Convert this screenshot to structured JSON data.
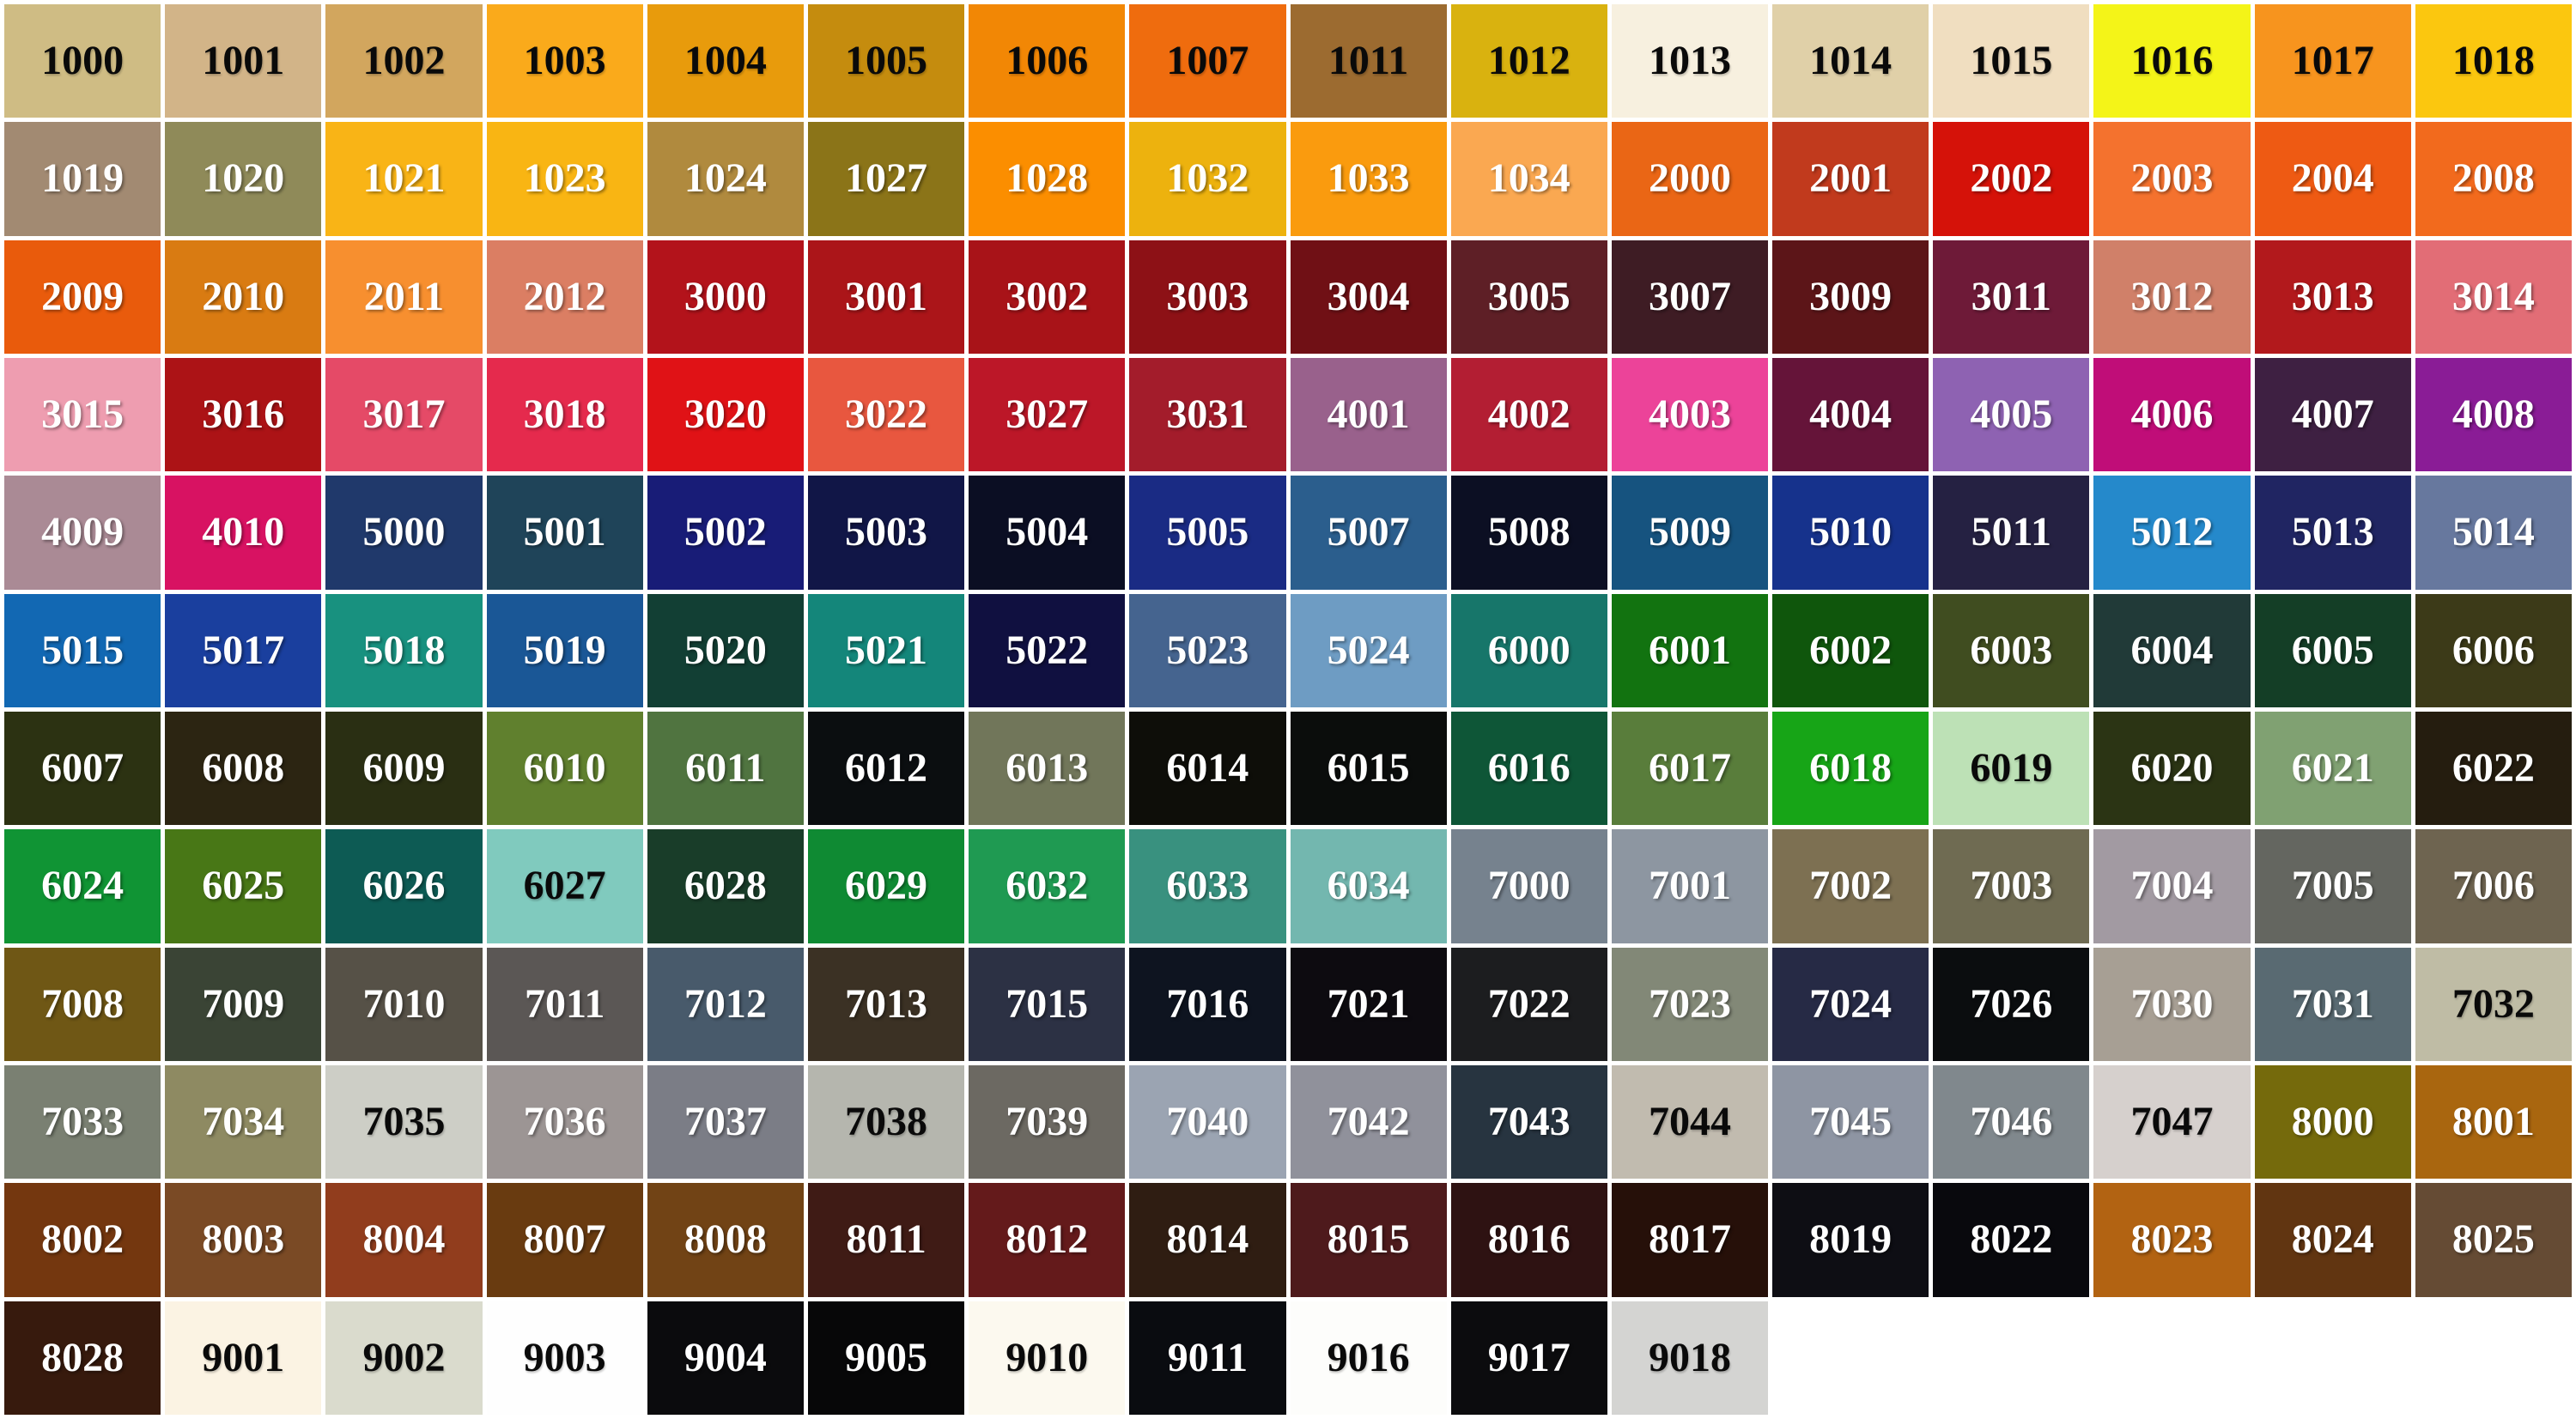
{
  "chart_data": {
    "type": "table",
    "description": "RAL classic colour chart grid of labelled colour swatches",
    "columns": 16,
    "row_count": 12,
    "text_colors": {
      "light": "#FFFFFF",
      "dark": "#0A0A0A"
    },
    "rows": [
      [
        {
          "code": "1000",
          "hex": "#CFBC84",
          "text": "dark"
        },
        {
          "code": "1001",
          "hex": "#D2B488",
          "text": "dark"
        },
        {
          "code": "1002",
          "hex": "#D2A65E",
          "text": "dark"
        },
        {
          "code": "1003",
          "hex": "#FAAA1B",
          "text": "dark"
        },
        {
          "code": "1004",
          "hex": "#E89B0C",
          "text": "dark"
        },
        {
          "code": "1005",
          "hex": "#C58C0E",
          "text": "dark"
        },
        {
          "code": "1006",
          "hex": "#F28705",
          "text": "dark"
        },
        {
          "code": "1007",
          "hex": "#EF6C0E",
          "text": "dark"
        },
        {
          "code": "1011",
          "hex": "#9C6B30",
          "text": "dark"
        },
        {
          "code": "1012",
          "hex": "#D9B20F",
          "text": "dark"
        },
        {
          "code": "1013",
          "hex": "#F7F0DF",
          "text": "dark"
        },
        {
          "code": "1014",
          "hex": "#E0D0A8",
          "text": "dark"
        },
        {
          "code": "1015",
          "hex": "#F0DEC0",
          "text": "dark"
        },
        {
          "code": "1016",
          "hex": "#F4F418",
          "text": "dark"
        },
        {
          "code": "1017",
          "hex": "#F7941E",
          "text": "dark"
        },
        {
          "code": "1018",
          "hex": "#FBC70F",
          "text": "dark"
        }
      ],
      [
        {
          "code": "1019",
          "hex": "#A28A72",
          "text": "light"
        },
        {
          "code": "1020",
          "hex": "#8F8A59",
          "text": "light"
        },
        {
          "code": "1021",
          "hex": "#F9B416",
          "text": "light"
        },
        {
          "code": "1023",
          "hex": "#F9B513",
          "text": "light"
        },
        {
          "code": "1024",
          "hex": "#B08A3E",
          "text": "light"
        },
        {
          "code": "1027",
          "hex": "#8B7418",
          "text": "light"
        },
        {
          "code": "1028",
          "hex": "#FB8E00",
          "text": "light"
        },
        {
          "code": "1032",
          "hex": "#EDB20E",
          "text": "light"
        },
        {
          "code": "1033",
          "hex": "#FA9B0E",
          "text": "light"
        },
        {
          "code": "1034",
          "hex": "#FAA851",
          "text": "light"
        },
        {
          "code": "2000",
          "hex": "#EA6615",
          "text": "light"
        },
        {
          "code": "2001",
          "hex": "#C13A1D",
          "text": "light"
        },
        {
          "code": "2002",
          "hex": "#D51209",
          "text": "light"
        },
        {
          "code": "2003",
          "hex": "#F4722E",
          "text": "light"
        },
        {
          "code": "2004",
          "hex": "#EE5A13",
          "text": "light"
        },
        {
          "code": "2008",
          "hex": "#F26A1D",
          "text": "light"
        }
      ],
      [
        {
          "code": "2009",
          "hex": "#E95B0C",
          "text": "light"
        },
        {
          "code": "2010",
          "hex": "#D97B12",
          "text": "light"
        },
        {
          "code": "2011",
          "hex": "#F78F2F",
          "text": "light"
        },
        {
          "code": "2012",
          "hex": "#DB7E63",
          "text": "light"
        },
        {
          "code": "3000",
          "hex": "#B3131B",
          "text": "light"
        },
        {
          "code": "3001",
          "hex": "#AB1519",
          "text": "light"
        },
        {
          "code": "3002",
          "hex": "#A81318",
          "text": "light"
        },
        {
          "code": "3003",
          "hex": "#8D1116",
          "text": "light"
        },
        {
          "code": "3004",
          "hex": "#701015",
          "text": "light"
        },
        {
          "code": "3005",
          "hex": "#5E1F26",
          "text": "light"
        },
        {
          "code": "3007",
          "hex": "#3E1C24",
          "text": "light"
        },
        {
          "code": "3009",
          "hex": "#5C1518",
          "text": "light"
        },
        {
          "code": "3011",
          "hex": "#6E1A38",
          "text": "light"
        },
        {
          "code": "3012",
          "hex": "#D08069",
          "text": "light"
        },
        {
          "code": "3013",
          "hex": "#B2191C",
          "text": "light"
        },
        {
          "code": "3014",
          "hex": "#E26D76",
          "text": "light"
        }
      ],
      [
        {
          "code": "3015",
          "hex": "#EE9DB0",
          "text": "light"
        },
        {
          "code": "3016",
          "hex": "#AC1316",
          "text": "light"
        },
        {
          "code": "3017",
          "hex": "#E54A67",
          "text": "light"
        },
        {
          "code": "3018",
          "hex": "#E52A4D",
          "text": "light"
        },
        {
          "code": "3020",
          "hex": "#E01216",
          "text": "light"
        },
        {
          "code": "3022",
          "hex": "#E8573F",
          "text": "light"
        },
        {
          "code": "3027",
          "hex": "#BC1728",
          "text": "light"
        },
        {
          "code": "3031",
          "hex": "#A31C2B",
          "text": "light"
        },
        {
          "code": "4001",
          "hex": "#99618C",
          "text": "light"
        },
        {
          "code": "4002",
          "hex": "#B31E33",
          "text": "light"
        },
        {
          "code": "4003",
          "hex": "#EC4399",
          "text": "light"
        },
        {
          "code": "4004",
          "hex": "#651439",
          "text": "light"
        },
        {
          "code": "4005",
          "hex": "#8E62B2",
          "text": "light"
        },
        {
          "code": "4006",
          "hex": "#C00D78",
          "text": "light"
        },
        {
          "code": "4007",
          "hex": "#3E2042",
          "text": "light"
        },
        {
          "code": "4008",
          "hex": "#8A1C96",
          "text": "light"
        }
      ],
      [
        {
          "code": "4009",
          "hex": "#AA8A95",
          "text": "light"
        },
        {
          "code": "4010",
          "hex": "#D81262",
          "text": "light"
        },
        {
          "code": "5000",
          "hex": "#20396B",
          "text": "light"
        },
        {
          "code": "5001",
          "hex": "#1F4459",
          "text": "light"
        },
        {
          "code": "5002",
          "hex": "#181C77",
          "text": "light"
        },
        {
          "code": "5003",
          "hex": "#111647",
          "text": "light"
        },
        {
          "code": "5004",
          "hex": "#0B0E23",
          "text": "light"
        },
        {
          "code": "5005",
          "hex": "#1A2B84",
          "text": "light"
        },
        {
          "code": "5007",
          "hex": "#2B5E8D",
          "text": "light"
        },
        {
          "code": "5008",
          "hex": "#0C0F23",
          "text": "light"
        },
        {
          "code": "5009",
          "hex": "#16537F",
          "text": "light"
        },
        {
          "code": "5010",
          "hex": "#16328C",
          "text": "light"
        },
        {
          "code": "5011",
          "hex": "#252142",
          "text": "light"
        },
        {
          "code": "5012",
          "hex": "#2589CB",
          "text": "light"
        },
        {
          "code": "5013",
          "hex": "#202562",
          "text": "light"
        },
        {
          "code": "5014",
          "hex": "#67789E",
          "text": "light"
        }
      ],
      [
        {
          "code": "5015",
          "hex": "#1268B3",
          "text": "light"
        },
        {
          "code": "5017",
          "hex": "#1A3F9E",
          "text": "light"
        },
        {
          "code": "5018",
          "hex": "#18917F",
          "text": "light"
        },
        {
          "code": "5019",
          "hex": "#1A5796",
          "text": "light"
        },
        {
          "code": "5020",
          "hex": "#123F34",
          "text": "light"
        },
        {
          "code": "5021",
          "hex": "#14867A",
          "text": "light"
        },
        {
          "code": "5022",
          "hex": "#101040",
          "text": "light"
        },
        {
          "code": "5023",
          "hex": "#45648F",
          "text": "light"
        },
        {
          "code": "5024",
          "hex": "#6E9CC3",
          "text": "light"
        },
        {
          "code": "6000",
          "hex": "#17766A",
          "text": "light"
        },
        {
          "code": "6001",
          "hex": "#127310",
          "text": "light"
        },
        {
          "code": "6002",
          "hex": "#0F560C",
          "text": "light"
        },
        {
          "code": "6003",
          "hex": "#404D20",
          "text": "light"
        },
        {
          "code": "6004",
          "hex": "#213A38",
          "text": "light"
        },
        {
          "code": "6005",
          "hex": "#143E26",
          "text": "light"
        },
        {
          "code": "6006",
          "hex": "#3C3A18",
          "text": "light"
        }
      ],
      [
        {
          "code": "6007",
          "hex": "#2C3212",
          "text": "light"
        },
        {
          "code": "6008",
          "hex": "#2C2512",
          "text": "light"
        },
        {
          "code": "6009",
          "hex": "#2A2F13",
          "text": "light"
        },
        {
          "code": "6010",
          "hex": "#60802E",
          "text": "light"
        },
        {
          "code": "6011",
          "hex": "#507440",
          "text": "light"
        },
        {
          "code": "6012",
          "hex": "#0B0E10",
          "text": "light"
        },
        {
          "code": "6013",
          "hex": "#71765A",
          "text": "light"
        },
        {
          "code": "6014",
          "hex": "#0E0E09",
          "text": "light"
        },
        {
          "code": "6015",
          "hex": "#0B0D0C",
          "text": "light"
        },
        {
          "code": "6016",
          "hex": "#0E5637",
          "text": "light"
        },
        {
          "code": "6017",
          "hex": "#597D3B",
          "text": "light"
        },
        {
          "code": "6018",
          "hex": "#17A517",
          "text": "light"
        },
        {
          "code": "6019",
          "hex": "#BDE1B6",
          "text": "dark"
        },
        {
          "code": "6020",
          "hex": "#2B3414",
          "text": "light"
        },
        {
          "code": "6021",
          "hex": "#80A172",
          "text": "light"
        },
        {
          "code": "6022",
          "hex": "#251D0F",
          "text": "light"
        }
      ],
      [
        {
          "code": "6024",
          "hex": "#109434",
          "text": "light"
        },
        {
          "code": "6025",
          "hex": "#487716",
          "text": "light"
        },
        {
          "code": "6026",
          "hex": "#0D5B54",
          "text": "light"
        },
        {
          "code": "6027",
          "hex": "#80CABE",
          "text": "dark"
        },
        {
          "code": "6028",
          "hex": "#193D29",
          "text": "light"
        },
        {
          "code": "6029",
          "hex": "#0F8A33",
          "text": "light"
        },
        {
          "code": "6032",
          "hex": "#1F9A52",
          "text": "light"
        },
        {
          "code": "6033",
          "hex": "#39917F",
          "text": "light"
        },
        {
          "code": "6034",
          "hex": "#73B7AF",
          "text": "light"
        },
        {
          "code": "7000",
          "hex": "#76828E",
          "text": "light"
        },
        {
          "code": "7001",
          "hex": "#8D96A1",
          "text": "light"
        },
        {
          "code": "7002",
          "hex": "#7D7052",
          "text": "light"
        },
        {
          "code": "7003",
          "hex": "#6F6B52",
          "text": "light"
        },
        {
          "code": "7004",
          "hex": "#A29AA2",
          "text": "light"
        },
        {
          "code": "7005",
          "hex": "#646660",
          "text": "light"
        },
        {
          "code": "7006",
          "hex": "#6E6450",
          "text": "light"
        }
      ],
      [
        {
          "code": "7008",
          "hex": "#6F5715",
          "text": "light"
        },
        {
          "code": "7009",
          "hex": "#3A4435",
          "text": "light"
        },
        {
          "code": "7010",
          "hex": "#565147",
          "text": "light"
        },
        {
          "code": "7011",
          "hex": "#5B5755",
          "text": "light"
        },
        {
          "code": "7012",
          "hex": "#485A6B",
          "text": "light"
        },
        {
          "code": "7013",
          "hex": "#3B3124",
          "text": "light"
        },
        {
          "code": "7015",
          "hex": "#2C3144",
          "text": "light"
        },
        {
          "code": "7016",
          "hex": "#0E1420",
          "text": "light"
        },
        {
          "code": "7021",
          "hex": "#0D0B10",
          "text": "light"
        },
        {
          "code": "7022",
          "hex": "#1C1D1F",
          "text": "light"
        },
        {
          "code": "7023",
          "hex": "#828877",
          "text": "light"
        },
        {
          "code": "7024",
          "hex": "#262A45",
          "text": "light"
        },
        {
          "code": "7026",
          "hex": "#0B0D0F",
          "text": "light"
        },
        {
          "code": "7030",
          "hex": "#A79F94",
          "text": "light"
        },
        {
          "code": "7031",
          "hex": "#596A72",
          "text": "light"
        },
        {
          "code": "7032",
          "hex": "#BFBCA5",
          "text": "dark"
        }
      ],
      [
        {
          "code": "7033",
          "hex": "#7A8072",
          "text": "light"
        },
        {
          "code": "7034",
          "hex": "#8E8A62",
          "text": "light"
        },
        {
          "code": "7035",
          "hex": "#CDCEC6",
          "text": "dark"
        },
        {
          "code": "7036",
          "hex": "#9C9594",
          "text": "light"
        },
        {
          "code": "7037",
          "hex": "#7B7D86",
          "text": "light"
        },
        {
          "code": "7038",
          "hex": "#B5B6AE",
          "text": "dark"
        },
        {
          "code": "7039",
          "hex": "#6C6962",
          "text": "light"
        },
        {
          "code": "7040",
          "hex": "#9BA4B2",
          "text": "light"
        },
        {
          "code": "7042",
          "hex": "#90919B",
          "text": "light"
        },
        {
          "code": "7043",
          "hex": "#273440",
          "text": "light"
        },
        {
          "code": "7044",
          "hex": "#C1BBAF",
          "text": "dark"
        },
        {
          "code": "7045",
          "hex": "#8E95A3",
          "text": "light"
        },
        {
          "code": "7046",
          "hex": "#80888D",
          "text": "light"
        },
        {
          "code": "7047",
          "hex": "#D6D0CD",
          "text": "dark"
        },
        {
          "code": "8000",
          "hex": "#756A0C",
          "text": "light"
        },
        {
          "code": "8001",
          "hex": "#A9660F",
          "text": "light"
        }
      ],
      [
        {
          "code": "8002",
          "hex": "#74370F",
          "text": "light"
        },
        {
          "code": "8003",
          "hex": "#7A4A25",
          "text": "light"
        },
        {
          "code": "8004",
          "hex": "#913D1D",
          "text": "light"
        },
        {
          "code": "8007",
          "hex": "#693B10",
          "text": "light"
        },
        {
          "code": "8008",
          "hex": "#714315",
          "text": "light"
        },
        {
          "code": "8011",
          "hex": "#3F1B15",
          "text": "light"
        },
        {
          "code": "8012",
          "hex": "#641A1B",
          "text": "light"
        },
        {
          "code": "8014",
          "hex": "#2F1D12",
          "text": "light"
        },
        {
          "code": "8015",
          "hex": "#4E1A1C",
          "text": "light"
        },
        {
          "code": "8016",
          "hex": "#2E1212",
          "text": "light"
        },
        {
          "code": "8017",
          "hex": "#261009",
          "text": "light"
        },
        {
          "code": "8019",
          "hex": "#0E0E14",
          "text": "light"
        },
        {
          "code": "8022",
          "hex": "#09090D",
          "text": "light"
        },
        {
          "code": "8023",
          "hex": "#B26312",
          "text": "light"
        },
        {
          "code": "8024",
          "hex": "#613511",
          "text": "light"
        },
        {
          "code": "8025",
          "hex": "#654B34",
          "text": "light"
        }
      ],
      [
        {
          "code": "8028",
          "hex": "#371A0D",
          "text": "light"
        },
        {
          "code": "9001",
          "hex": "#FBF3E3",
          "text": "dark"
        },
        {
          "code": "9002",
          "hex": "#DADBCD",
          "text": "dark"
        },
        {
          "code": "9003",
          "hex": "#FEFEFE",
          "text": "dark"
        },
        {
          "code": "9004",
          "hex": "#0B0B0D",
          "text": "light"
        },
        {
          "code": "9005",
          "hex": "#070708",
          "text": "light"
        },
        {
          "code": "9010",
          "hex": "#FCF9EF",
          "text": "dark"
        },
        {
          "code": "9011",
          "hex": "#0A0C10",
          "text": "light"
        },
        {
          "code": "9016",
          "hex": "#FDFDFB",
          "text": "dark"
        },
        {
          "code": "9017",
          "hex": "#0C0C0E",
          "text": "light"
        },
        {
          "code": "9018",
          "hex": "#D4D4D2",
          "text": "dark"
        },
        null,
        null,
        null,
        null,
        null
      ]
    ]
  }
}
